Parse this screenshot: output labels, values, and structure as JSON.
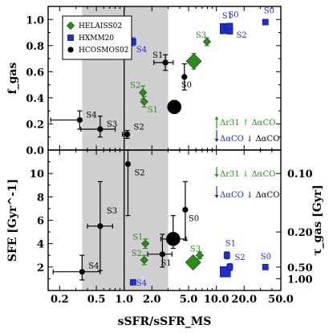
{
  "chart_data": {
    "type": "scatter",
    "xlabel": "sSFR/sSFR_MS",
    "x_scale": "log",
    "xlim": [
      0.15,
      50
    ],
    "x_ticks": [
      0.2,
      0.5,
      1.0,
      2.0,
      5.0,
      10.0,
      20.0,
      50.0
    ],
    "x_tick_labels": [
      "0.2",
      "0.5",
      "1.0",
      "2.0",
      "5.0",
      "10.0",
      "20.0",
      "50.0"
    ],
    "shaded_band": [
      0.35,
      3.0
    ],
    "vline": 1.0,
    "legend_position": "top-left",
    "series": [
      {
        "name": "HELAISS02",
        "marker": "diamond",
        "color": "#2e8b1e"
      },
      {
        "name": "HXMM20",
        "marker": "square",
        "color": "#1f2fc8"
      },
      {
        "name": "HCOSMOS02",
        "marker": "circle",
        "color": "#000000"
      }
    ],
    "panels": [
      {
        "id": "fgas",
        "ylabel": "f_gas",
        "ylim": [
          0.0,
          1.1
        ],
        "y_ticks": [
          0.0,
          0.2,
          0.4,
          0.6,
          0.8,
          1.0
        ],
        "y_tick_labels": [
          "0.0",
          "0.2",
          "0.4",
          "0.6",
          "0.8",
          "1.0"
        ],
        "points": [
          {
            "series": "HCOSMOS02",
            "label": "S4",
            "x": 0.33,
            "y": 0.23,
            "xerr": [
              0.17,
              0.0
            ],
            "yerr": [
              0.07,
              0.07
            ],
            "big": false
          },
          {
            "series": "HCOSMOS02",
            "label": "S3",
            "x": 0.55,
            "y": 0.16,
            "xerr": [
              0.21,
              0.25
            ],
            "yerr": [
              0.06,
              0.1
            ],
            "big": false
          },
          {
            "series": "HCOSMOS02",
            "label": "S2",
            "x": 1.08,
            "y": 0.12,
            "xerr": [
              0.12,
              0.0
            ],
            "yerr": [
              0.03,
              0.03
            ],
            "big": false
          },
          {
            "series": "HCOSMOS02",
            "label": "S1",
            "x": 2.8,
            "y": 0.67,
            "xerr": [
              0.7,
              0.6
            ],
            "yerr": [
              0.06,
              0.06
            ],
            "big": false
          },
          {
            "series": "HCOSMOS02",
            "label": "S0",
            "x": 4.5,
            "y": 0.56,
            "xerr": [
              0.0,
              0.0
            ],
            "yerr": [
              0.1,
              0.1
            ],
            "big": false
          },
          {
            "series": "HCOSMOS02",
            "label": "",
            "x": 3.5,
            "y": 0.33,
            "xerr": [
              0.0,
              0.0
            ],
            "yerr": [
              0.05,
              0.05
            ],
            "big": true
          },
          {
            "series": "HELAISS02",
            "label": "S2",
            "x": 1.6,
            "y": 0.44,
            "xerr": [
              0.0,
              0.0
            ],
            "yerr": [
              0.05,
              0.05
            ],
            "big": false
          },
          {
            "series": "HELAISS02",
            "label": "S1",
            "x": 1.65,
            "y": 0.37,
            "xerr": [
              0.0,
              0.0
            ],
            "yerr": [
              0.04,
              0.04
            ],
            "big": false
          },
          {
            "series": "HELAISS02",
            "label": "S3",
            "x": 7.9,
            "y": 0.83,
            "xerr": [
              0.0,
              0.0
            ],
            "yerr": [
              0.03,
              0.03
            ],
            "big": false
          },
          {
            "series": "HELAISS02",
            "label": "",
            "x": 5.7,
            "y": 0.68,
            "xerr": [
              0.0,
              0.0
            ],
            "yerr": [
              0.06,
              0.06
            ],
            "big": true
          },
          {
            "series": "HXMM20",
            "label": "S4",
            "x": 1.25,
            "y": 0.83,
            "xerr": [
              0.0,
              0.0
            ],
            "yerr": [
              0.03,
              0.03
            ],
            "big": false
          },
          {
            "series": "HXMM20",
            "label": "S1",
            "x": 13.0,
            "y": 0.94,
            "xerr": [
              0.0,
              0.0
            ],
            "yerr": [
              0.02,
              0.02
            ],
            "big": false
          },
          {
            "series": "HXMM20",
            "label": "S2",
            "x": 14.0,
            "y": 0.91,
            "xerr": [
              0.0,
              0.0
            ],
            "yerr": [
              0.02,
              0.02
            ],
            "big": false
          },
          {
            "series": "HXMM20",
            "label": "S0",
            "x": 14.0,
            "y": 0.95,
            "xerr": [
              0.0,
              0.0
            ],
            "yerr": [
              0.0,
              0.0
            ],
            "big": false
          },
          {
            "series": "HXMM20",
            "label": "",
            "x": 12.5,
            "y": 0.93,
            "xerr": [
              0.0,
              0.0
            ],
            "yerr": [
              0.0,
              0.0
            ],
            "big": true
          },
          {
            "series": "HXMM20",
            "label": "S0",
            "x": 34.0,
            "y": 0.98,
            "xerr": [
              0.0,
              0.0
            ],
            "yerr": [
              0.0,
              0.0
            ],
            "big": false
          }
        ],
        "annotations": [
          {
            "text": "Δr31 ↑ ΔαCO",
            "color": "#2e8b1e"
          },
          {
            "text": "ΔαCO ↓ ΔαCO",
            "color": "#1f2fc8",
            "second_color": "#000000"
          }
        ]
      },
      {
        "id": "sfe",
        "ylabel": "SFE [Gyr^-1]",
        "ylim": [
          0,
          12
        ],
        "y_ticks": [
          2,
          4,
          6,
          8,
          10
        ],
        "y_tick_labels": [
          "2",
          "4",
          "6",
          "8",
          "10"
        ],
        "y2label": "τ_gas [Gyr]",
        "y2_ticks": [
          0.1,
          0.2,
          0.5,
          1.0
        ],
        "y2_tick_labels": [
          "0.10",
          "0.20",
          "0.50",
          "1.00"
        ],
        "points": [
          {
            "series": "HCOSMOS02",
            "label": "S4",
            "x": 0.35,
            "y": 1.6,
            "xerr": [
              0.18,
              0.2
            ],
            "yerr": [
              0.7,
              1.4
            ],
            "big": false
          },
          {
            "series": "HCOSMOS02",
            "label": "S3",
            "x": 0.55,
            "y": 5.5,
            "xerr": [
              0.15,
              0.2
            ],
            "yerr": [
              3.8,
              3.8
            ],
            "big": false
          },
          {
            "series": "HCOSMOS02",
            "label": "S2",
            "x": 1.1,
            "y": 10.8,
            "xerr": [
              0.0,
              0.0
            ],
            "yerr": [
              4.4,
              1.2
            ],
            "big": false
          },
          {
            "series": "HCOSMOS02",
            "label": "S1",
            "x": 2.6,
            "y": 3.1,
            "xerr": [
              0.8,
              0.7
            ],
            "yerr": [
              1.1,
              1.7
            ],
            "big": false
          },
          {
            "series": "HCOSMOS02",
            "label": "S0",
            "x": 4.6,
            "y": 6.9,
            "xerr": [
              0.0,
              0.0
            ],
            "yerr": [
              2.6,
              2.4
            ],
            "big": false
          },
          {
            "series": "HCOSMOS02",
            "label": "",
            "x": 3.4,
            "y": 4.4,
            "xerr": [
              0.9,
              1.3
            ],
            "yerr": [
              0.8,
              2.0
            ],
            "big": true
          },
          {
            "series": "HELAISS02",
            "label": "S1",
            "x": 1.7,
            "y": 4.0,
            "xerr": [
              0.0,
              0.0
            ],
            "yerr": [
              0.4,
              0.4
            ],
            "big": false
          },
          {
            "series": "HELAISS02",
            "label": "S2",
            "x": 1.65,
            "y": 2.6,
            "xerr": [
              0.0,
              0.0
            ],
            "yerr": [
              0.4,
              0.4
            ],
            "big": false
          },
          {
            "series": "HELAISS02",
            "label": "S3",
            "x": 6.6,
            "y": 3.0,
            "xerr": [
              0.0,
              0.0
            ],
            "yerr": [
              0.3,
              0.3
            ],
            "big": false
          },
          {
            "series": "HELAISS02",
            "label": "",
            "x": 5.6,
            "y": 2.4,
            "xerr": [
              0.0,
              0.0
            ],
            "yerr": [
              0.4,
              0.4
            ],
            "big": true
          },
          {
            "series": "HXMM20",
            "label": "S4",
            "x": 1.25,
            "y": 0.7,
            "xerr": [
              0.0,
              0.0
            ],
            "yerr": [
              0.0,
              0.0
            ],
            "big": false
          },
          {
            "series": "HXMM20",
            "label": "S1",
            "x": 13.0,
            "y": 3.0,
            "xerr": [
              0.0,
              0.0
            ],
            "yerr": [
              0.3,
              0.3
            ],
            "big": false
          },
          {
            "series": "HXMM20",
            "label": "S2",
            "x": 14.0,
            "y": 2.0,
            "xerr": [
              0.0,
              0.0
            ],
            "yerr": [
              0.3,
              0.3
            ],
            "big": false
          },
          {
            "series": "HXMM20",
            "label": "",
            "x": 12.5,
            "y": 1.6,
            "xerr": [
              0.0,
              0.0
            ],
            "yerr": [
              0.3,
              0.3
            ],
            "big": true
          },
          {
            "series": "HXMM20",
            "label": "S0",
            "x": 34.0,
            "y": 2.0,
            "xerr": [
              0.0,
              0.0
            ],
            "yerr": [
              0.2,
              0.2
            ],
            "big": false
          }
        ],
        "annotations": [
          {
            "text": "Δr31 ↓ ΔαCO",
            "color": "#2e8b1e"
          },
          {
            "text": "ΔαCO ↓ ΔαCO",
            "color": "#1f2fc8",
            "second_color": "#000000"
          }
        ]
      }
    ]
  }
}
